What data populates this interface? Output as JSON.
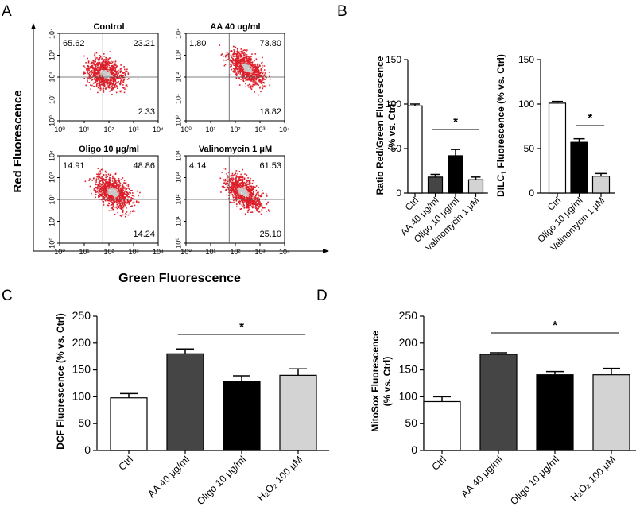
{
  "panel_labels": {
    "a": "A",
    "b": "B",
    "c": "C",
    "d": "D"
  },
  "panel_a": {
    "y_axis_label": "Red Fluorescence",
    "x_axis_label": "Green Fluorescence",
    "tick_labels": [
      "10⁰",
      "10¹",
      "10²",
      "10³",
      "10⁴"
    ],
    "plots": [
      {
        "title": "Control",
        "q_ul": "65.62",
        "q_ur": "23.21",
        "q_lr": "2.33"
      },
      {
        "title": "AA 40 ug/ml",
        "q_ul": "1.80",
        "q_ur": "73.80",
        "q_lr": "18.82"
      },
      {
        "title": "Oligo 10 μg/ml",
        "q_ul": "14.91",
        "q_ur": "48.86",
        "q_lr": "14.24"
      },
      {
        "title": "Valinomycin 1 μM",
        "q_ul": "4.14",
        "q_ur": "61.53",
        "q_lr": "25.10"
      }
    ]
  },
  "colors": {
    "scatter_red": "#dd1f2a",
    "scatter_core": "#c8c8c8",
    "bar_white": "#ffffff",
    "bar_dark": "#454545",
    "bar_black": "#000000",
    "bar_light": "#d3d3d3"
  },
  "chart_data": [
    {
      "id": "b1",
      "type": "bar",
      "ylabel_line1": "Ratio Red/Green Fluorescence",
      "ylabel_line2": "(% vs. Ctrl)",
      "categories": [
        "Ctrl",
        "AA 40 μg/ml",
        "Oligo 10 μg/ml",
        "Valinomycin 1 μM"
      ],
      "values": [
        98,
        18,
        42,
        15
      ],
      "errors": [
        2,
        3,
        7,
        3
      ],
      "colors": [
        "#ffffff",
        "#454545",
        "#000000",
        "#d3d3d3"
      ],
      "ylim": [
        0,
        150
      ],
      "yticks": [
        0,
        50,
        100,
        150
      ],
      "significance": {
        "label": "*",
        "from": 1,
        "to": 3
      }
    },
    {
      "id": "b2",
      "type": "bar",
      "ylabel_main": "DILC",
      "ylabel_sub": "1",
      "ylabel_rest": " Fluorescence (% vs. Ctrl)",
      "categories": [
        "Ctrl",
        "Oligo 10 μg/ml",
        "Valinomycin 1 μM"
      ],
      "values": [
        101,
        57,
        19
      ],
      "errors": [
        2,
        4,
        3
      ],
      "colors": [
        "#ffffff",
        "#000000",
        "#d3d3d3"
      ],
      "ylim": [
        0,
        150
      ],
      "yticks": [
        0,
        50,
        100,
        150
      ],
      "significance": {
        "label": "*",
        "from": 1,
        "to": 2
      }
    },
    {
      "id": "c",
      "type": "bar",
      "ylabel": "DCF Fluorescence (% vs. Ctrl)",
      "categories": [
        "Ctrl",
        "AA 40 μg/ml",
        "Oligo 10 μg/ml",
        "H₂O₂ 100 μM"
      ],
      "values": [
        98,
        180,
        129,
        140
      ],
      "errors": [
        8,
        9,
        10,
        12
      ],
      "colors": [
        "#ffffff",
        "#454545",
        "#000000",
        "#d3d3d3"
      ],
      "ylim": [
        0,
        250
      ],
      "yticks": [
        0,
        50,
        100,
        150,
        200,
        250
      ],
      "significance": {
        "label": "*",
        "from": 1,
        "to": 3
      }
    },
    {
      "id": "d",
      "type": "bar",
      "ylabel_line1": "MitoSox Fluorescence",
      "ylabel_line2": "(% vs. Ctrl)",
      "categories": [
        "Ctrl",
        "AA 40 μg/ml",
        "Oligo 10 μg/ml",
        "H₂O₂ 100 μM"
      ],
      "values": [
        91,
        179,
        141,
        141
      ],
      "errors": [
        9,
        3,
        6,
        12
      ],
      "colors": [
        "#ffffff",
        "#454545",
        "#000000",
        "#d3d3d3"
      ],
      "ylim": [
        0,
        250
      ],
      "yticks": [
        0,
        50,
        100,
        150,
        200,
        250
      ],
      "significance": {
        "label": "*",
        "from": 1,
        "to": 3
      }
    }
  ]
}
